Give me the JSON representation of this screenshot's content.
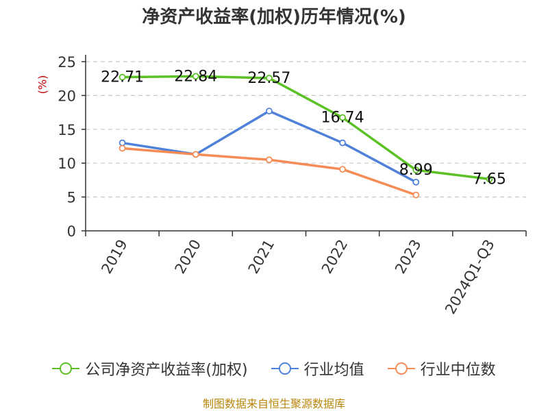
{
  "title": "净资产收益率(加权)历年情况(%)",
  "source_text": "制图数据来自恒生聚源数据库",
  "legend_items": [
    {
      "label": "公司净资产收益率(加权)",
      "color": "#5bc124"
    },
    {
      "label": "行业均值",
      "color": "#4f81d9"
    },
    {
      "label": "行业中位数",
      "color": "#f58c56"
    }
  ],
  "chart_data": {
    "type": "line",
    "title": "净资产收益率(加权)历年情况(%)",
    "ylabel": "(%)",
    "xlabel": "",
    "categories": [
      "2019",
      "2020",
      "2021",
      "2022",
      "2023",
      "2024Q1-Q3"
    ],
    "ylim": [
      0,
      25
    ],
    "yticks": [
      0,
      5,
      10,
      15,
      20,
      25
    ],
    "grid": true,
    "legend_position": "bottom",
    "series": [
      {
        "name": "公司净资产收益率(加权)",
        "color": "#5bc124",
        "values": [
          22.71,
          22.84,
          22.57,
          16.74,
          8.99,
          7.65
        ],
        "labels": [
          "22.71",
          "22.84",
          "22.57",
          "16.74",
          "8.99",
          "7.65"
        ]
      },
      {
        "name": "行业均值",
        "color": "#4f81d9",
        "values": [
          13.0,
          11.3,
          17.7,
          13.0,
          7.2,
          null
        ]
      },
      {
        "name": "行业中位数",
        "color": "#f58c56",
        "values": [
          12.2,
          11.3,
          10.5,
          9.1,
          5.3,
          null
        ]
      }
    ]
  }
}
